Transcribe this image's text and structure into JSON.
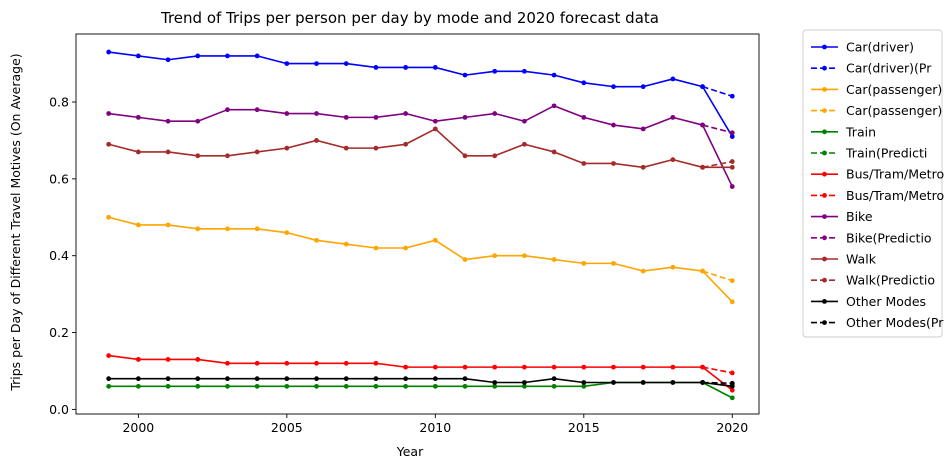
{
  "chart_data": {
    "type": "line",
    "title": "Trend of Trips per person per day by mode and 2020 forecast data",
    "xlabel": "Year",
    "ylabel": "Trips per Day of Different Travel Motives (On Average)",
    "xlim": [
      1997.9,
      2020.9
    ],
    "ylim": [
      -0.012,
      0.977
    ],
    "xticks": [
      2000,
      2005,
      2010,
      2015,
      2020
    ],
    "yticks": [
      0.0,
      0.2,
      0.4,
      0.6,
      0.8
    ],
    "xtick_labels": [
      "2000",
      "2005",
      "2010",
      "2015",
      "2020"
    ],
    "ytick_labels": [
      "0.0",
      "0.2",
      "0.4",
      "0.6",
      "0.8"
    ],
    "grid": false,
    "legend_position": "outside-right",
    "x": [
      1999,
      2000,
      2001,
      2002,
      2003,
      2004,
      2005,
      2006,
      2007,
      2008,
      2009,
      2010,
      2011,
      2012,
      2013,
      2014,
      2015,
      2016,
      2017,
      2018,
      2019,
      2020
    ],
    "series": [
      {
        "name": "Car(driver)",
        "color": "#0000ff",
        "style": "solid",
        "values": [
          0.93,
          0.92,
          0.91,
          0.92,
          0.92,
          0.92,
          0.9,
          0.9,
          0.9,
          0.89,
          0.89,
          0.89,
          0.87,
          0.88,
          0.88,
          0.87,
          0.85,
          0.84,
          0.84,
          0.86,
          0.84,
          0.71
        ]
      },
      {
        "name": "Car(driver)(Pr",
        "color": "#0000ff",
        "style": "dashed",
        "x": [
          2019,
          2020
        ],
        "values": [
          0.84,
          0.815
        ]
      },
      {
        "name": "Car(passenger)",
        "color": "#ffa500",
        "style": "solid",
        "values": [
          0.5,
          0.48,
          0.48,
          0.47,
          0.47,
          0.47,
          0.46,
          0.44,
          0.43,
          0.42,
          0.42,
          0.44,
          0.39,
          0.4,
          0.4,
          0.39,
          0.38,
          0.38,
          0.36,
          0.37,
          0.36,
          0.28
        ]
      },
      {
        "name": "Car(passenger)",
        "color": "#ffa500",
        "style": "dashed",
        "x": [
          2019,
          2020
        ],
        "values": [
          0.36,
          0.335
        ]
      },
      {
        "name": "Train",
        "color": "#008000",
        "style": "solid",
        "values": [
          0.06,
          0.06,
          0.06,
          0.06,
          0.06,
          0.06,
          0.06,
          0.06,
          0.06,
          0.06,
          0.06,
          0.06,
          0.06,
          0.06,
          0.06,
          0.06,
          0.06,
          0.07,
          0.07,
          0.07,
          0.07,
          0.03
        ]
      },
      {
        "name": "Train(Predicti",
        "color": "#008000",
        "style": "dashed",
        "x": [
          2019,
          2020
        ],
        "values": [
          0.07,
          0.062
        ]
      },
      {
        "name": "Bus/Tram/Metro",
        "color": "#ff0000",
        "style": "solid",
        "values": [
          0.14,
          0.13,
          0.13,
          0.13,
          0.12,
          0.12,
          0.12,
          0.12,
          0.12,
          0.12,
          0.11,
          0.11,
          0.11,
          0.11,
          0.11,
          0.11,
          0.11,
          0.11,
          0.11,
          0.11,
          0.11,
          0.05
        ]
      },
      {
        "name": "Bus/Tram/Metro",
        "color": "#ff0000",
        "style": "dashed",
        "x": [
          2019,
          2020
        ],
        "values": [
          0.11,
          0.095
        ]
      },
      {
        "name": "Bike",
        "color": "#800080",
        "style": "solid",
        "values": [
          0.77,
          0.76,
          0.75,
          0.75,
          0.78,
          0.78,
          0.77,
          0.77,
          0.76,
          0.76,
          0.77,
          0.75,
          0.76,
          0.77,
          0.75,
          0.79,
          0.76,
          0.74,
          0.73,
          0.76,
          0.74,
          0.58
        ]
      },
      {
        "name": "Bike(Predictio",
        "color": "#800080",
        "style": "dashed",
        "x": [
          2019,
          2020
        ],
        "values": [
          0.74,
          0.72
        ]
      },
      {
        "name": "Walk",
        "color": "#a52a2a",
        "style": "solid",
        "values": [
          0.69,
          0.67,
          0.67,
          0.66,
          0.66,
          0.67,
          0.68,
          0.7,
          0.68,
          0.68,
          0.69,
          0.73,
          0.66,
          0.66,
          0.69,
          0.67,
          0.64,
          0.64,
          0.63,
          0.65,
          0.63,
          0.63
        ]
      },
      {
        "name": "Walk(Predictio",
        "color": "#a52a2a",
        "style": "dashed",
        "x": [
          2019,
          2020
        ],
        "values": [
          0.63,
          0.645
        ]
      },
      {
        "name": "Other Modes",
        "color": "#000000",
        "style": "solid",
        "values": [
          0.08,
          0.08,
          0.08,
          0.08,
          0.08,
          0.08,
          0.08,
          0.08,
          0.08,
          0.08,
          0.08,
          0.08,
          0.08,
          0.07,
          0.07,
          0.08,
          0.07,
          0.07,
          0.07,
          0.07,
          0.07,
          0.06
        ]
      },
      {
        "name": "Other Modes(Pr",
        "color": "#000000",
        "style": "dashed",
        "x": [
          2019,
          2020
        ],
        "values": [
          0.07,
          0.068
        ]
      }
    ]
  }
}
